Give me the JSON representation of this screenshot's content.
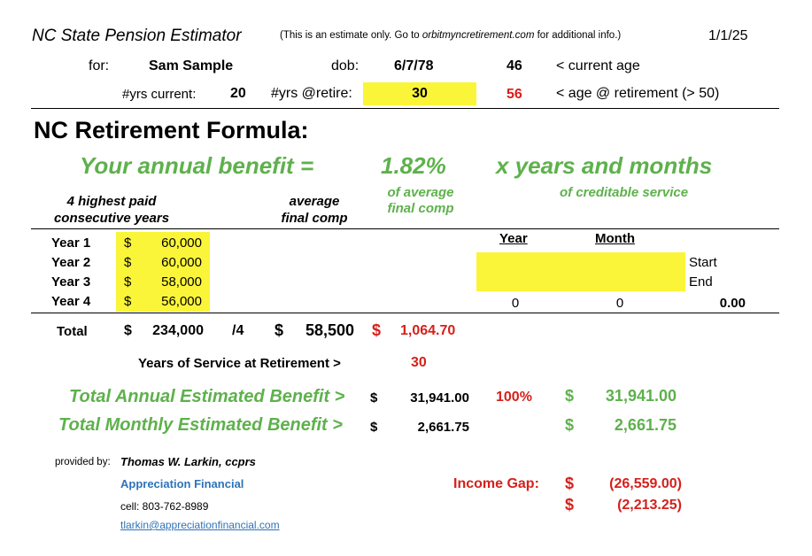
{
  "header": {
    "title": "NC State Pension Estimator",
    "note_prefix": "(This is an estimate only.  Go to ",
    "note_site": "orbitmyncretirement.com",
    "note_suffix": " for additional info.)",
    "date": "1/1/25"
  },
  "person": {
    "for_label": "for:",
    "name": "Sam Sample",
    "dob_label": "dob:",
    "dob": "6/7/78",
    "current_age": "46",
    "current_age_label": "< current age",
    "yrs_current_label": "#yrs current:",
    "yrs_current": "20",
    "yrs_retire_label": "#yrs @retire:",
    "yrs_retire": "30",
    "retire_age": "56",
    "retire_age_label": "< age @ retirement (> 50)"
  },
  "formula": {
    "heading": "NC Retirement Formula:",
    "benefit_label": "Your annual benefit =",
    "percent": "1.82%",
    "times_label": "x  years and months",
    "of_average_1": "of average",
    "of_average_2": "final comp",
    "creditable_label": "of creditable service",
    "highest_1": "4 highest paid",
    "highest_2": "consecutive years",
    "average_1": "average",
    "average_2": "final comp"
  },
  "years": [
    {
      "label": "Year 1",
      "dollar": "$",
      "amount": "60,000"
    },
    {
      "label": "Year 2",
      "dollar": "$",
      "amount": "60,000"
    },
    {
      "label": "Year 3",
      "dollar": "$",
      "amount": "58,000"
    },
    {
      "label": "Year 4",
      "dollar": "$",
      "amount": "56,000"
    }
  ],
  "service_table": {
    "year_header": "Year",
    "month_header": "Month",
    "start_label": "Start",
    "end_label": "End",
    "year_value": "0",
    "month_value": "0",
    "total_value": "0.00"
  },
  "totals": {
    "label": "Total",
    "dollar": "$",
    "sum": "234,000",
    "divisor": "/4",
    "avg_dollar": "$",
    "avg": "58,500",
    "per_dollar": "$",
    "per_year": "1,064.70"
  },
  "service": {
    "label": "Years of Service at Retirement >",
    "value": "30"
  },
  "benefits": {
    "annual_label": "Total Annual Estimated Benefit >",
    "annual_dollar": "$",
    "annual": "31,941.00",
    "percent": "100%",
    "annual_dollar_2": "$",
    "annual_2": "31,941.00",
    "monthly_label": "Total Monthly Estimated Benefit >",
    "monthly_dollar": "$",
    "monthly": "2,661.75",
    "monthly_dollar_2": "$",
    "monthly_2": "2,661.75"
  },
  "provider": {
    "label": "provided by:",
    "name": "Thomas W. Larkin, ccprs",
    "company": "Appreciation Financial",
    "cell": "cell: 803-762-8989",
    "email": "tlarkin@appreciationfinancial.com"
  },
  "gap": {
    "label": "Income Gap:",
    "dollar_1": "$",
    "annual": "(26,559.00)",
    "dollar_2": "$",
    "monthly": "(2,213.25)"
  },
  "colors": {
    "green": "#5eb14c",
    "red": "#d6201b",
    "blue": "#2e73b8",
    "highlight": "#fbf539"
  }
}
